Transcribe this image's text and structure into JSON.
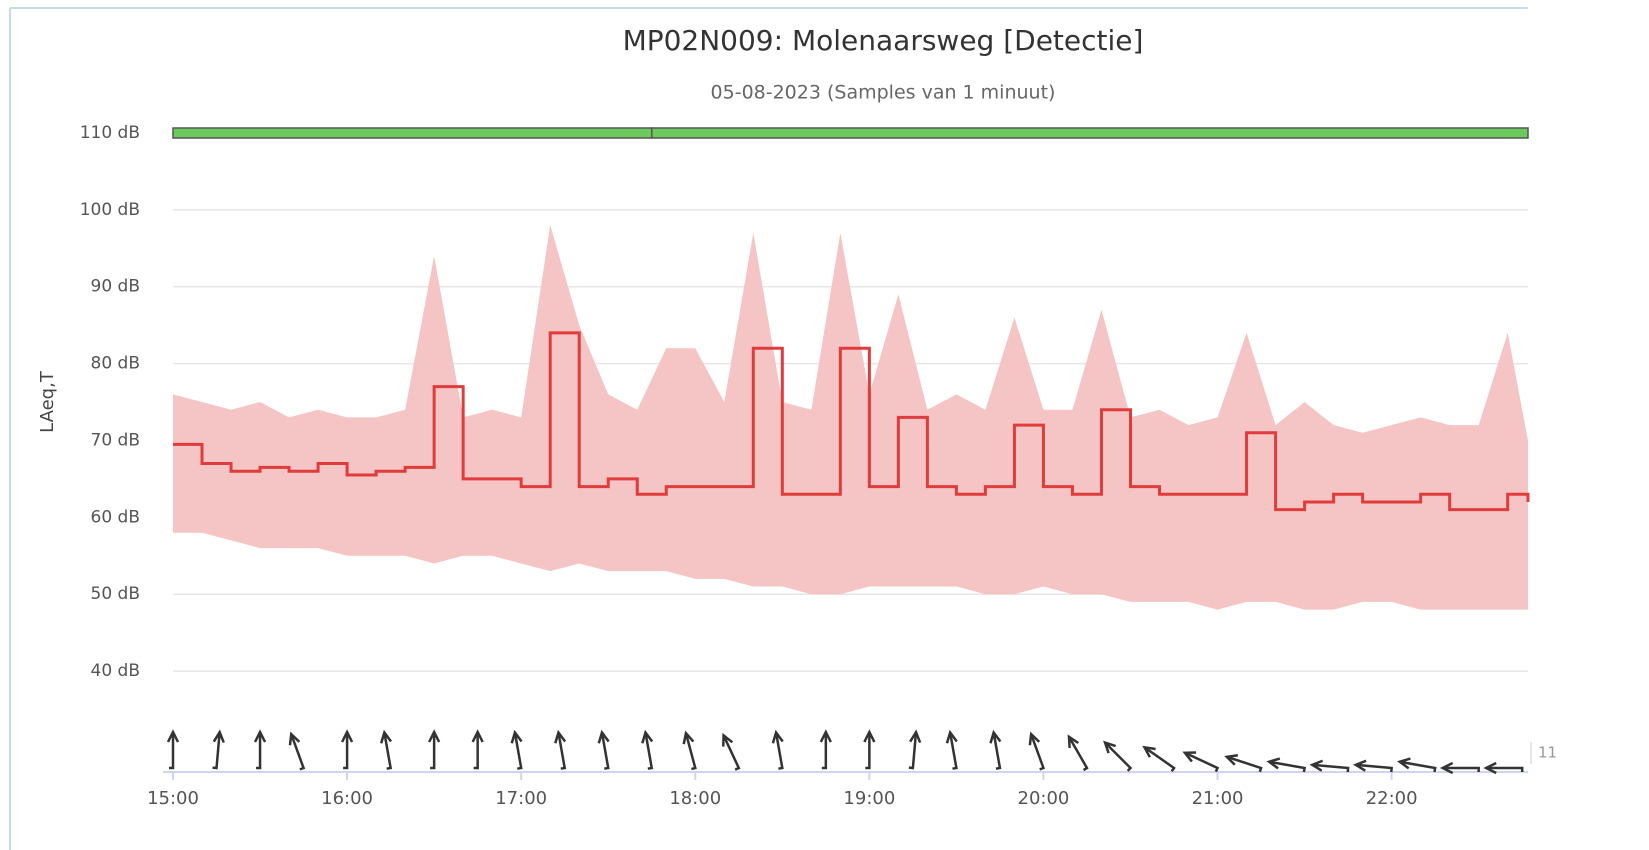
{
  "chart_data": {
    "type": "line",
    "title": "MP02N009: Molenaarsweg [Detectie]",
    "subtitle": "05-08-2023 (Samples van 1 minuut)",
    "y_label": "LAeq,T",
    "edge_label": "11",
    "color": "#e03c3c",
    "x": [
      "15:00",
      "15:10",
      "15:20",
      "15:30",
      "15:40",
      "15:50",
      "16:00",
      "16:10",
      "16:20",
      "16:30",
      "16:40",
      "16:50",
      "17:00",
      "17:10",
      "17:20",
      "17:30",
      "17:40",
      "17:50",
      "18:00",
      "18:10",
      "18:20",
      "18:30",
      "18:40",
      "18:50",
      "19:00",
      "19:10",
      "19:20",
      "19:30",
      "19:40",
      "19:50",
      "20:00",
      "20:10",
      "20:20",
      "20:30",
      "20:40",
      "20:50",
      "21:00",
      "21:10",
      "21:20",
      "21:30",
      "21:40",
      "21:50",
      "22:00",
      "22:10",
      "22:20",
      "22:30",
      "22:40",
      "22:47"
    ],
    "values": [
      69.5,
      67,
      66,
      66.5,
      66,
      67,
      65.5,
      66,
      66.5,
      77,
      65,
      65,
      64,
      84,
      64,
      65,
      63,
      64,
      64,
      64,
      82,
      63,
      63,
      82,
      64,
      73,
      64,
      63,
      64,
      72,
      64,
      63,
      74,
      64,
      63,
      63,
      63,
      71,
      61,
      62,
      63,
      62,
      62,
      63,
      61,
      61,
      63,
      62
    ],
    "band": {
      "color": "#f5c4c4",
      "max": [
        76,
        75,
        74,
        75,
        73,
        74,
        73,
        73,
        74,
        94,
        73,
        74,
        73,
        98,
        85,
        76,
        74,
        82,
        82,
        75,
        97,
        75,
        74,
        97,
        76,
        89,
        74,
        76,
        74,
        86,
        74,
        74,
        87,
        73,
        74,
        72,
        73,
        84,
        72,
        75,
        72,
        71,
        72,
        73,
        72,
        72,
        84,
        70
      ],
      "min": [
        58,
        58,
        57,
        56,
        56,
        56,
        55,
        55,
        55,
        54,
        55,
        55,
        54,
        53,
        54,
        53,
        53,
        53,
        52,
        52,
        51,
        51,
        50,
        50,
        51,
        51,
        51,
        51,
        50,
        50,
        51,
        50,
        50,
        49,
        49,
        49,
        48,
        49,
        49,
        48,
        48,
        49,
        49,
        48,
        48,
        48,
        48,
        48
      ]
    },
    "xlim": [
      "15:00",
      "22:47"
    ],
    "xticks": [
      "15:00",
      "16:00",
      "17:00",
      "18:00",
      "19:00",
      "20:00",
      "21:00",
      "22:00"
    ],
    "ylim": [
      27,
      110
    ],
    "yticks": [
      {
        "value": 40,
        "label": "40 dB"
      },
      {
        "value": 50,
        "label": "50 dB"
      },
      {
        "value": 60,
        "label": "60 dB"
      },
      {
        "value": 70,
        "label": "70 dB"
      },
      {
        "value": 80,
        "label": "80 dB"
      },
      {
        "value": 90,
        "label": "90 dB"
      },
      {
        "value": 100,
        "label": "100 dB"
      },
      {
        "value": 110,
        "label": "110 dB"
      }
    ],
    "grid": true,
    "status": {
      "color": "#6cc95c",
      "y": 110,
      "segments": [
        {
          "start": "15:00",
          "end": "17:45"
        },
        {
          "start": "17:45",
          "end": "22:47"
        }
      ]
    },
    "wind": {
      "x": [
        "15:00",
        "15:15",
        "15:30",
        "15:45",
        "16:00",
        "16:15",
        "16:30",
        "16:45",
        "17:00",
        "17:15",
        "17:30",
        "17:45",
        "18:00",
        "18:15",
        "18:30",
        "18:45",
        "19:00",
        "19:15",
        "19:30",
        "19:45",
        "20:00",
        "20:15",
        "20:30",
        "20:45",
        "21:00",
        "21:15",
        "21:30",
        "21:45",
        "22:00",
        "22:15",
        "22:30",
        "22:45"
      ],
      "direction": [
        0,
        5,
        0,
        -20,
        0,
        -10,
        0,
        0,
        -10,
        -10,
        -10,
        -10,
        -15,
        -25,
        -10,
        0,
        0,
        5,
        -10,
        -10,
        -20,
        -30,
        -45,
        -55,
        -65,
        -72,
        -80,
        -85,
        -85,
        -80,
        -90,
        -90
      ]
    }
  }
}
